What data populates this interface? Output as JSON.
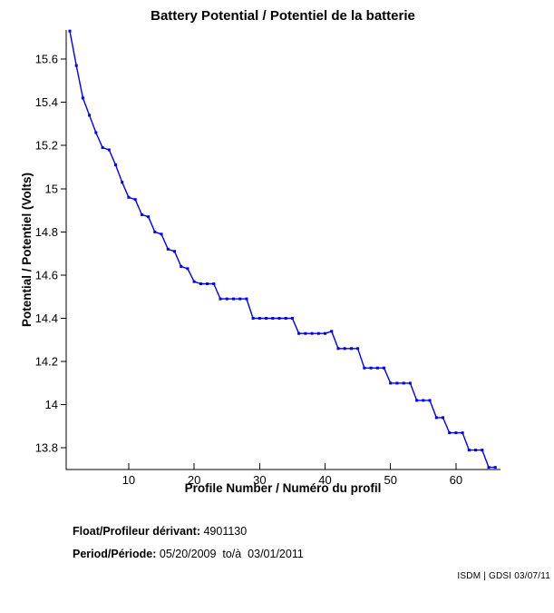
{
  "title": "Battery Potential / Potentiel de la batterie",
  "chart_data": {
    "type": "line",
    "title": "Battery Potential / Potentiel de la batterie",
    "xlabel": "Profile Number / Numéro du profil",
    "ylabel": "Potential / Potentiel (Volts)",
    "x": [
      1,
      2,
      3,
      4,
      5,
      6,
      7,
      8,
      9,
      10,
      11,
      12,
      13,
      14,
      15,
      16,
      17,
      18,
      19,
      20,
      21,
      22,
      23,
      24,
      25,
      26,
      27,
      28,
      29,
      30,
      31,
      32,
      33,
      34,
      35,
      36,
      37,
      38,
      39,
      40,
      41,
      42,
      43,
      44,
      45,
      46,
      47,
      48,
      49,
      50,
      51,
      52,
      53,
      54,
      55,
      56,
      57,
      58,
      59,
      60,
      61,
      62,
      63,
      64,
      65,
      66
    ],
    "values": [
      15.73,
      15.57,
      15.42,
      15.34,
      15.26,
      15.19,
      15.18,
      15.11,
      15.03,
      14.96,
      14.95,
      14.88,
      14.87,
      14.8,
      14.79,
      14.72,
      14.71,
      14.64,
      14.63,
      14.57,
      14.56,
      14.56,
      14.56,
      14.49,
      14.49,
      14.49,
      14.49,
      14.49,
      14.4,
      14.4,
      14.4,
      14.4,
      14.4,
      14.4,
      14.4,
      14.33,
      14.33,
      14.33,
      14.33,
      14.33,
      14.34,
      14.26,
      14.26,
      14.26,
      14.26,
      14.17,
      14.17,
      14.17,
      14.17,
      14.1,
      14.1,
      14.1,
      14.1,
      14.02,
      14.02,
      14.02,
      13.94,
      13.94,
      13.87,
      13.87,
      13.87,
      13.79,
      13.79,
      13.79,
      13.71,
      13.71
    ],
    "xlim": [
      0.45,
      66.8
    ],
    "ylim": [
      13.7,
      15.735
    ],
    "x_ticks": [
      10,
      20,
      30,
      40,
      50,
      60
    ],
    "y_ticks": [
      13.8,
      14,
      14.2,
      14.4,
      14.6,
      14.8,
      15,
      15.2,
      15.4,
      15.6
    ],
    "grid": false,
    "legend": null,
    "line_color": "#0000EE",
    "marker": "square",
    "axis_color": "#000000"
  },
  "footer": {
    "float_label": "Float/Profileur dérivant:",
    "float_value": " 4901130",
    "period_label": "Period/Période:",
    "period_value": " 05/20/2009  to/à  03/01/2011"
  },
  "watermark": "ISDM | GDSI 03/07/11"
}
